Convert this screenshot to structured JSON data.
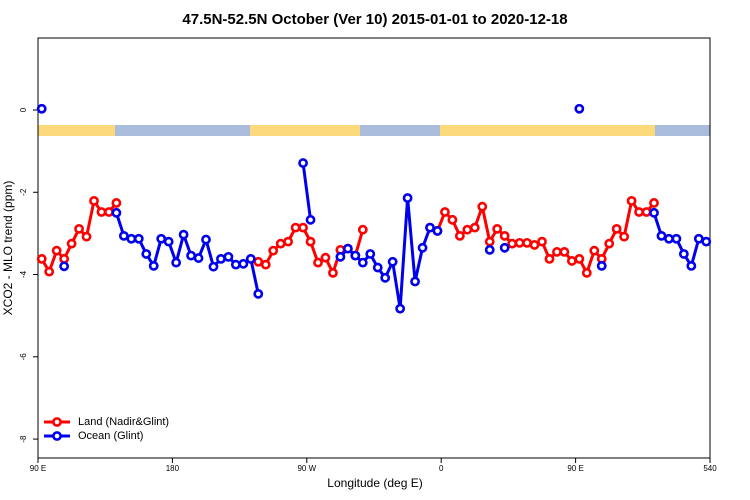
{
  "chart_data": {
    "type": "line",
    "title": "47.5N-52.5N October (Ver 10)   2015-01-01 to 2020-12-18",
    "x_label": "Longitude (deg E)",
    "y_label": "XCO2 - MLO trend (ppm)",
    "x": [
      92.5,
      97.5,
      102.5,
      107.5,
      112.5,
      117.5,
      122.5,
      127.5,
      132.5,
      137.5,
      142.5,
      147.5,
      152.5,
      157.5,
      162.5,
      167.5,
      172.5,
      177.5,
      182.5,
      187.5,
      192.5,
      197.5,
      202.5,
      207.5,
      212.5,
      217.5,
      222.5,
      227.5,
      232.5,
      237.5,
      242.5,
      247.5,
      252.5,
      257.5,
      262.5,
      267.5,
      272.5,
      277.5,
      282.5,
      287.5,
      292.5,
      297.5,
      302.5,
      307.5,
      312.5,
      317.5,
      322.5,
      327.5,
      332.5,
      337.5,
      342.5,
      347.5,
      352.5,
      357.5,
      362.5,
      367.5,
      372.5,
      377.5,
      382.5,
      387.5,
      392.5,
      397.5,
      402.5,
      407.5,
      412.5,
      417.5,
      422.5,
      427.5,
      432.5,
      437.5,
      442.5,
      447.5,
      452.5,
      457.5,
      462.5,
      467.5,
      472.5,
      477.5,
      482.5,
      487.5,
      492.5,
      497.5,
      502.5,
      507.5,
      512.5,
      517.5,
      522.5,
      527.5,
      532.5,
      537.5
    ],
    "series": [
      {
        "name": "Land (Nadir&Glint)",
        "color": "#ff0000",
        "values": [
          -3.62,
          -3.93,
          -3.42,
          -3.62,
          -3.25,
          -2.89,
          -3.08,
          -2.21,
          -2.48,
          -2.48,
          -2.26,
          null,
          null,
          null,
          null,
          null,
          null,
          null,
          null,
          null,
          null,
          null,
          null,
          null,
          null,
          null,
          null,
          null,
          null,
          -3.69,
          -3.76,
          -3.42,
          -3.25,
          -3.2,
          -2.86,
          -2.86,
          -3.2,
          -3.71,
          -3.59,
          -3.96,
          -3.4,
          -3.37,
          -3.54,
          -2.91,
          null,
          null,
          null,
          null,
          null,
          null,
          null,
          null,
          -2.86,
          -2.94,
          -2.48,
          -2.67,
          -3.06,
          -2.91,
          -2.86,
          -2.35,
          -3.2,
          -2.89,
          -3.06,
          -3.25,
          -3.23,
          -3.23,
          -3.28,
          -3.2,
          -3.62,
          -3.45,
          -3.45,
          -3.67,
          -3.62,
          -3.96,
          -3.42,
          -3.62,
          -3.25,
          -2.89,
          -3.08,
          -2.21,
          -2.48,
          -2.48,
          -2.26,
          null,
          null,
          null,
          null,
          null,
          null,
          null
        ]
      },
      {
        "name": "Ocean (Glint)",
        "color": "#0000ee",
        "values": [
          0.03,
          null,
          null,
          -3.8,
          null,
          null,
          null,
          null,
          null,
          null,
          -2.5,
          -3.06,
          -3.13,
          -3.13,
          -3.5,
          -3.79,
          -3.13,
          -3.2,
          -3.71,
          -3.03,
          -3.54,
          -3.6,
          -3.15,
          -3.81,
          -3.62,
          -3.57,
          -3.76,
          -3.74,
          -3.62,
          -4.47,
          null,
          null,
          null,
          null,
          null,
          -1.29,
          -2.67,
          null,
          null,
          null,
          -3.57,
          -3.37,
          -3.54,
          -3.71,
          -3.5,
          -3.83,
          -4.08,
          -3.69,
          -4.83,
          -2.14,
          -4.17,
          -3.35,
          -2.86,
          -2.94,
          null,
          null,
          null,
          null,
          null,
          null,
          -3.4,
          null,
          -3.35,
          null,
          null,
          null,
          null,
          null,
          null,
          null,
          null,
          null,
          0.03,
          null,
          null,
          -3.79,
          null,
          null,
          null,
          null,
          null,
          null,
          -2.5,
          -3.06,
          -3.13,
          -3.13,
          -3.5,
          -3.79,
          -3.13,
          -3.2
        ]
      }
    ],
    "xlim": [
      90,
      540
    ],
    "xticks": [
      {
        "value": 90,
        "label": "90 E"
      },
      180,
      {
        "value": 270,
        "label": "90 W"
      },
      {
        "value": 360,
        "label": "0"
      },
      {
        "value": 450,
        "label": "90 E"
      },
      540
    ],
    "ylim": [
      -8.46,
      1.75
    ],
    "yticks": [
      0,
      -2,
      -4,
      -6,
      -8
    ],
    "legend": "bottom-left"
  }
}
